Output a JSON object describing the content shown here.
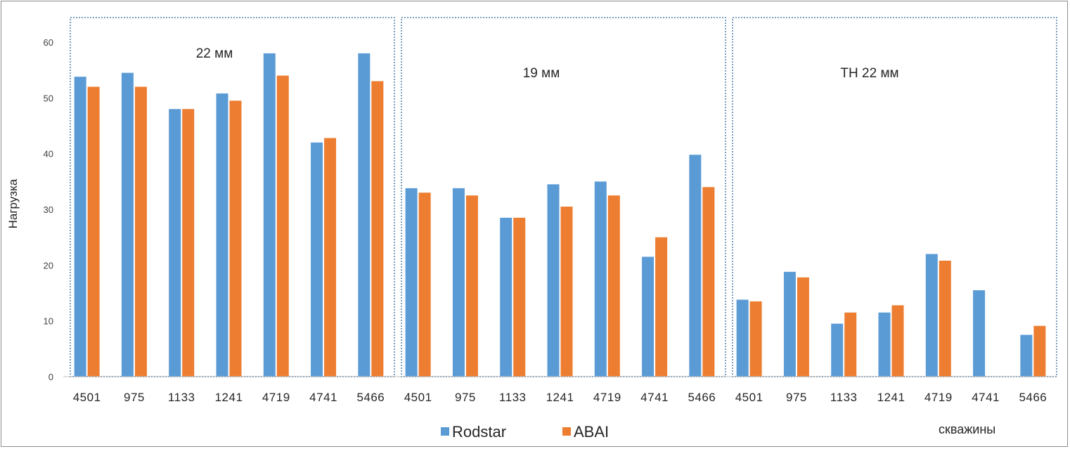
{
  "chart_data": {
    "type": "bar",
    "ylabel": "Нагрузка",
    "xlabel": "скважины",
    "ylim": [
      0,
      60
    ],
    "yticks": [
      0,
      10,
      20,
      30,
      40,
      50,
      60
    ],
    "categories": [
      "4501",
      "975",
      "1133",
      "1241",
      "4719",
      "4741",
      "5466"
    ],
    "groups": [
      {
        "label": "22 мм",
        "series": [
          {
            "name": "Rodstar",
            "values": [
              53.8,
              54.5,
              48,
              50.8,
              58,
              42,
              58
            ]
          },
          {
            "name": "ABAI",
            "values": [
              52,
              52,
              48,
              49.5,
              54,
              42.8,
              53
            ]
          }
        ]
      },
      {
        "label": "19 мм",
        "series": [
          {
            "name": "Rodstar",
            "values": [
              33.8,
              33.8,
              28.5,
              34.5,
              35,
              21.5,
              39.8
            ]
          },
          {
            "name": "ABAI",
            "values": [
              33,
              32.5,
              28.5,
              30.5,
              32.5,
              25,
              34
            ]
          }
        ]
      },
      {
        "label": "ТН 22 мм",
        "series": [
          {
            "name": "Rodstar",
            "values": [
              13.8,
              18.8,
              9.5,
              11.5,
              22,
              15.5,
              7.5
            ]
          },
          {
            "name": "ABAI",
            "values": [
              13.5,
              17.8,
              11.5,
              12.8,
              20.8,
              null,
              9.1
            ]
          }
        ]
      }
    ],
    "legend": [
      {
        "name": "Rodstar",
        "color": "#5b9bd5"
      },
      {
        "name": "ABAI",
        "color": "#ed7d31"
      }
    ],
    "legend_position": "bottom",
    "grid": false
  }
}
